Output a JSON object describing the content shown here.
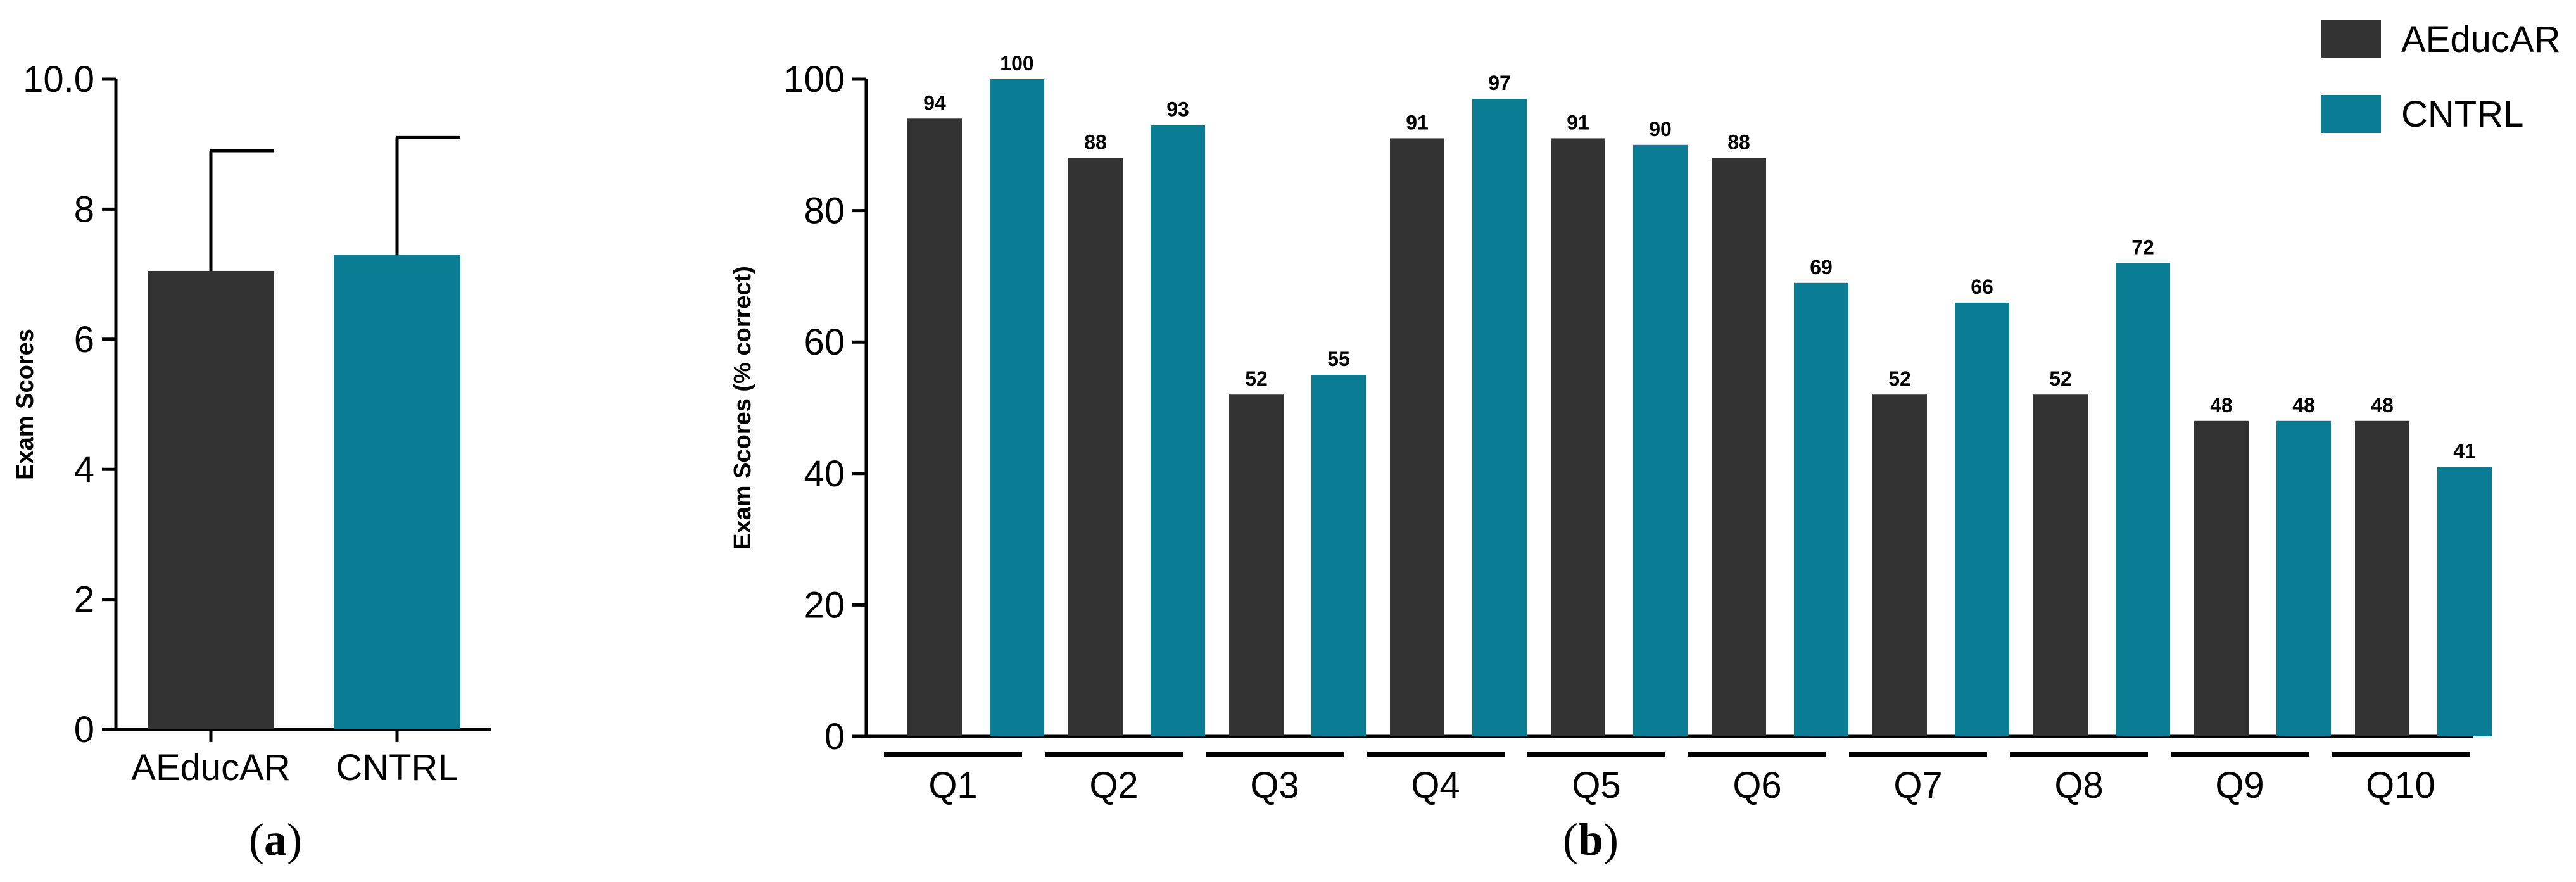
{
  "colors": {
    "aeducar": "#333333",
    "cntrl": "#0a7c93",
    "axis": "#000000"
  },
  "chart_data": [
    {
      "id": "a",
      "type": "bar",
      "panel_label": "(a)",
      "panel_letter": "a",
      "ylabel": "Exam Scores",
      "xlabel": "",
      "ylim": [
        0,
        10
      ],
      "yticks": [
        0,
        2,
        4,
        6,
        8,
        10
      ],
      "ytick_labels": [
        "0",
        "2",
        "4",
        "6",
        "8",
        "10.0"
      ],
      "categories": [
        "AEducAR",
        "CNTRL"
      ],
      "values": [
        7.05,
        7.3
      ],
      "error_upper": [
        8.9,
        9.1
      ],
      "colors": [
        "aeducar",
        "cntrl"
      ]
    },
    {
      "id": "b",
      "type": "bar",
      "panel_label": "(b)",
      "panel_letter": "b",
      "ylabel": "Exam Scores (% correct)",
      "xlabel": "",
      "ylim": [
        0,
        100
      ],
      "yticks": [
        0,
        20,
        40,
        60,
        80,
        100
      ],
      "categories": [
        "Q1",
        "Q2",
        "Q3",
        "Q4",
        "Q5",
        "Q6",
        "Q7",
        "Q8",
        "Q9",
        "Q10"
      ],
      "legend": {
        "placement": "top-right"
      },
      "series": [
        {
          "name": "AEducAR",
          "color": "aeducar",
          "values": [
            94,
            88,
            52,
            91,
            91,
            88,
            52,
            52,
            48,
            48
          ]
        },
        {
          "name": "CNTRL",
          "color": "cntrl",
          "values": [
            100,
            93,
            55,
            97,
            90,
            69,
            66,
            72,
            48,
            41
          ]
        }
      ]
    }
  ]
}
